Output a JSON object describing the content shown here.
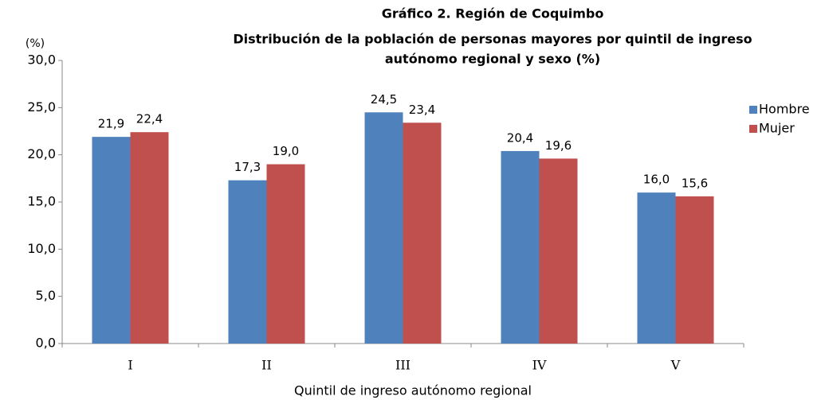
{
  "chart_data": {
    "type": "bar",
    "title": "Gráfico 2. Región de Coquimbo",
    "subtitle": [
      "Distribución de la población de personas mayores por quintil  de ingreso",
      "autónomo regional y sexo (%)"
    ],
    "y_label": "(%)",
    "x_label": "Quintil de ingreso autónomo regional",
    "categories": [
      "I",
      "II",
      "III",
      "IV",
      "V"
    ],
    "series": [
      {
        "name": "Hombre",
        "color": "#4f81bd",
        "values": [
          21.9,
          17.3,
          24.5,
          20.4,
          16.0
        ],
        "value_labels": [
          "21,9",
          "17,3",
          "24,5",
          "20,4",
          "16,0"
        ]
      },
      {
        "name": "Mujer",
        "color": "#c0504d",
        "values": [
          22.4,
          19.0,
          23.4,
          19.6,
          15.6
        ],
        "value_labels": [
          "22,4",
          "19,0",
          "23,4",
          "19,6",
          "15,6"
        ]
      }
    ],
    "ylim": [
      0,
      30
    ],
    "yticks": [
      {
        "value": 0,
        "label": "0,0"
      },
      {
        "value": 5,
        "label": "5,0"
      },
      {
        "value": 10,
        "label": "10,0"
      },
      {
        "value": 15,
        "label": "15,0"
      },
      {
        "value": 20,
        "label": "20,0"
      },
      {
        "value": 25,
        "label": "25,0"
      },
      {
        "value": 30,
        "label": "30,0"
      }
    ],
    "grid": false,
    "legend": "right"
  }
}
